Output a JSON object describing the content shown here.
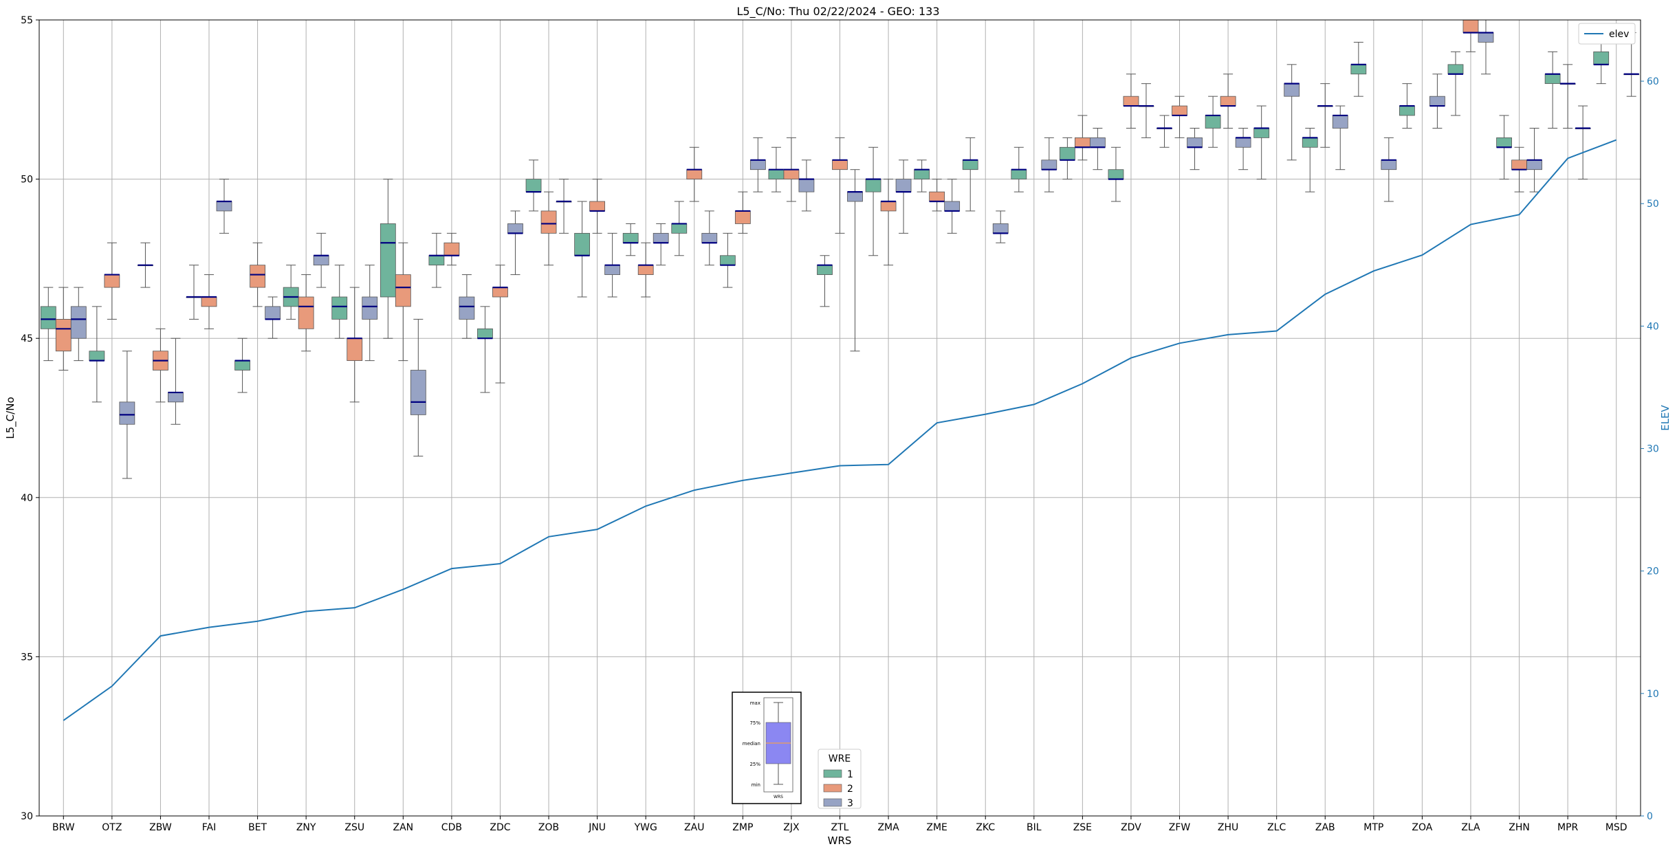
{
  "chart_data": {
    "type": "box",
    "title": "L5_C/No: Thu 02/22/2024 - GEO: 133",
    "xlabel": "WRS",
    "ylabel": "L5_C/No",
    "y2label": "ELEV",
    "ylim": [
      30,
      55
    ],
    "y2lim": [
      0,
      65
    ],
    "yticks": [
      30,
      35,
      40,
      45,
      50,
      55
    ],
    "y2ticks": [
      0,
      10,
      20,
      30,
      40,
      50,
      60
    ],
    "grid": true,
    "categories": [
      "BRW",
      "OTZ",
      "ZBW",
      "FAI",
      "BET",
      "ZNY",
      "ZSU",
      "ZAN",
      "CDB",
      "ZDC",
      "ZOB",
      "JNU",
      "YWG",
      "ZAU",
      "ZMP",
      "ZJX",
      "ZTL",
      "ZMA",
      "ZME",
      "ZKC",
      "BIL",
      "ZSE",
      "ZDV",
      "ZFW",
      "ZHU",
      "ZLC",
      "ZAB",
      "MTP",
      "ZOA",
      "ZLA",
      "ZHN",
      "MPR",
      "MSD"
    ],
    "box_series": [
      {
        "name": "1",
        "color": "#6fb49c",
        "boxes": [
          {
            "min": 44.3,
            "q1": 45.3,
            "median": 45.6,
            "q3": 46.0,
            "max": 46.6
          },
          {
            "min": 43.0,
            "q1": 44.3,
            "median": 44.3,
            "q3": 44.6,
            "max": 46.0
          },
          {
            "min": 46.6,
            "q1": 47.3,
            "median": 47.3,
            "q3": 47.3,
            "max": 48.0
          },
          {
            "min": 45.6,
            "q1": 46.3,
            "median": 46.3,
            "q3": 46.3,
            "max": 47.3
          },
          {
            "min": 43.3,
            "q1": 44.0,
            "median": 44.3,
            "q3": 44.3,
            "max": 45.0
          },
          {
            "min": 45.6,
            "q1": 46.0,
            "median": 46.3,
            "q3": 46.6,
            "max": 47.3
          },
          {
            "min": 45.0,
            "q1": 45.6,
            "median": 46.0,
            "q3": 46.3,
            "max": 47.3
          },
          {
            "min": 45.0,
            "q1": 46.3,
            "median": 48.0,
            "q3": 48.6,
            "max": 50.0
          },
          {
            "min": 46.6,
            "q1": 47.3,
            "median": 47.6,
            "q3": 47.6,
            "max": 48.3
          },
          {
            "min": 43.3,
            "q1": 45.0,
            "median": 45.0,
            "q3": 45.3,
            "max": 46.0
          },
          {
            "min": 49.0,
            "q1": 49.6,
            "median": 49.6,
            "q3": 50.0,
            "max": 50.6
          },
          {
            "min": 46.3,
            "q1": 47.6,
            "median": 47.6,
            "q3": 48.3,
            "max": 49.3
          },
          {
            "min": 47.6,
            "q1": 48.0,
            "median": 48.0,
            "q3": 48.3,
            "max": 48.6
          },
          {
            "min": 47.6,
            "q1": 48.3,
            "median": 48.6,
            "q3": 48.6,
            "max": 49.3
          },
          {
            "min": 46.6,
            "q1": 47.3,
            "median": 47.3,
            "q3": 47.6,
            "max": 48.3
          },
          {
            "min": 49.6,
            "q1": 50.0,
            "median": 50.3,
            "q3": 50.3,
            "max": 51.0
          },
          {
            "min": 46.0,
            "q1": 47.0,
            "median": 47.3,
            "q3": 47.3,
            "max": 47.6
          },
          {
            "min": 47.6,
            "q1": 49.6,
            "median": 50.0,
            "q3": 50.0,
            "max": 51.0
          },
          {
            "min": 49.6,
            "q1": 50.0,
            "median": 50.3,
            "q3": 50.3,
            "max": 50.6
          },
          {
            "min": 49.0,
            "q1": 50.3,
            "median": 50.6,
            "q3": 50.6,
            "max": 51.3
          },
          {
            "min": 49.6,
            "q1": 50.0,
            "median": 50.3,
            "q3": 50.3,
            "max": 51.0
          },
          {
            "min": 50.0,
            "q1": 50.6,
            "median": 50.6,
            "q3": 51.0,
            "max": 51.3
          },
          {
            "min": 49.3,
            "q1": 50.0,
            "median": 50.0,
            "q3": 50.3,
            "max": 51.0
          },
          {
            "min": 51.0,
            "q1": 51.6,
            "median": 51.6,
            "q3": 51.6,
            "max": 52.0
          },
          {
            "min": 51.0,
            "q1": 51.6,
            "median": 52.0,
            "q3": 52.0,
            "max": 52.6
          },
          {
            "min": 50.0,
            "q1": 51.3,
            "median": 51.6,
            "q3": 51.6,
            "max": 52.3
          },
          {
            "min": 49.6,
            "q1": 51.0,
            "median": 51.3,
            "q3": 51.3,
            "max": 51.6
          },
          {
            "min": 52.6,
            "q1": 53.3,
            "median": 53.6,
            "q3": 53.6,
            "max": 54.3
          },
          {
            "min": 51.6,
            "q1": 52.0,
            "median": 52.3,
            "q3": 52.3,
            "max": 53.0
          },
          {
            "min": 52.0,
            "q1": 53.3,
            "median": 53.3,
            "q3": 53.6,
            "max": 54.0
          },
          {
            "min": 50.0,
            "q1": 51.0,
            "median": 51.0,
            "q3": 51.3,
            "max": 52.0
          },
          {
            "min": 51.6,
            "q1": 53.0,
            "median": 53.3,
            "q3": 53.3,
            "max": 54.0
          },
          {
            "min": 53.0,
            "q1": 53.6,
            "median": 53.6,
            "q3": 54.0,
            "max": 54.3
          }
        ]
      },
      {
        "name": "2",
        "color": "#e89a7b",
        "boxes": [
          {
            "min": 44.0,
            "q1": 44.6,
            "median": 45.3,
            "q3": 45.6,
            "max": 46.6
          },
          {
            "min": 45.6,
            "q1": 46.6,
            "median": 47.0,
            "q3": 47.0,
            "max": 48.0
          },
          {
            "min": 43.0,
            "q1": 44.0,
            "median": 44.3,
            "q3": 44.6,
            "max": 45.3
          },
          {
            "min": 45.3,
            "q1": 46.0,
            "median": 46.3,
            "q3": 46.3,
            "max": 47.0
          },
          {
            "min": 46.0,
            "q1": 46.6,
            "median": 47.0,
            "q3": 47.3,
            "max": 48.0
          },
          {
            "min": 44.6,
            "q1": 45.3,
            "median": 46.0,
            "q3": 46.3,
            "max": 47.0
          },
          {
            "min": 43.0,
            "q1": 44.3,
            "median": 45.0,
            "q3": 45.0,
            "max": 46.6
          },
          {
            "min": 44.3,
            "q1": 46.0,
            "median": 46.6,
            "q3": 47.0,
            "max": 48.0
          },
          {
            "min": 47.3,
            "q1": 47.6,
            "median": 47.6,
            "q3": 48.0,
            "max": 48.3
          },
          {
            "min": 43.6,
            "q1": 46.3,
            "median": 46.6,
            "q3": 46.6,
            "max": 47.3
          },
          {
            "min": 47.3,
            "q1": 48.3,
            "median": 48.6,
            "q3": 49.0,
            "max": 49.6
          },
          {
            "min": 48.3,
            "q1": 49.0,
            "median": 49.0,
            "q3": 49.3,
            "max": 50.0
          },
          {
            "min": 46.3,
            "q1": 47.0,
            "median": 47.3,
            "q3": 47.3,
            "max": 48.0
          },
          {
            "min": 49.3,
            "q1": 50.0,
            "median": 50.3,
            "q3": 50.3,
            "max": 51.0
          },
          {
            "min": 48.3,
            "q1": 48.6,
            "median": 49.0,
            "q3": 49.0,
            "max": 49.6
          },
          {
            "min": 49.3,
            "q1": 50.0,
            "median": 50.3,
            "q3": 50.3,
            "max": 51.3
          },
          {
            "min": 48.3,
            "q1": 50.3,
            "median": 50.6,
            "q3": 50.6,
            "max": 51.3
          },
          {
            "min": 47.3,
            "q1": 49.0,
            "median": 49.3,
            "q3": 49.3,
            "max": 50.0
          },
          {
            "min": 49.0,
            "q1": 49.3,
            "median": 49.3,
            "q3": 49.6,
            "max": 50.0
          },
          {
            "min": null,
            "q1": null,
            "median": null,
            "q3": null,
            "max": null
          },
          {
            "min": null,
            "q1": null,
            "median": null,
            "q3": null,
            "max": null
          },
          {
            "min": 50.6,
            "q1": 51.0,
            "median": 51.0,
            "q3": 51.3,
            "max": 52.0
          },
          {
            "min": 51.6,
            "q1": 52.3,
            "median": 52.3,
            "q3": 52.6,
            "max": 53.3
          },
          {
            "min": 51.3,
            "q1": 52.0,
            "median": 52.0,
            "q3": 52.3,
            "max": 52.6
          },
          {
            "min": 51.6,
            "q1": 52.3,
            "median": 52.3,
            "q3": 52.6,
            "max": 53.3
          },
          {
            "min": null,
            "q1": null,
            "median": null,
            "q3": null,
            "max": null
          },
          {
            "min": 51.0,
            "q1": 52.3,
            "median": 52.3,
            "q3": 52.3,
            "max": 53.0
          },
          {
            "min": null,
            "q1": null,
            "median": null,
            "q3": null,
            "max": null
          },
          {
            "min": null,
            "q1": null,
            "median": null,
            "q3": null,
            "max": null
          },
          {
            "min": 54.0,
            "q1": 54.6,
            "median": 54.6,
            "q3": 55.0,
            "max": 55.0
          },
          {
            "min": 49.6,
            "q1": 50.3,
            "median": 50.3,
            "q3": 50.6,
            "max": 51.0
          },
          {
            "min": 51.6,
            "q1": 53.0,
            "median": 53.0,
            "q3": 53.0,
            "max": 53.6
          },
          {
            "min": null,
            "q1": null,
            "median": null,
            "q3": null,
            "max": null
          }
        ]
      },
      {
        "name": "3",
        "color": "#97a3c4",
        "boxes": [
          {
            "min": 44.3,
            "q1": 45.0,
            "median": 45.6,
            "q3": 46.0,
            "max": 46.6
          },
          {
            "min": 40.6,
            "q1": 42.3,
            "median": 42.6,
            "q3": 43.0,
            "max": 44.6
          },
          {
            "min": 42.3,
            "q1": 43.0,
            "median": 43.3,
            "q3": 43.3,
            "max": 45.0
          },
          {
            "min": 48.3,
            "q1": 49.0,
            "median": 49.3,
            "q3": 49.3,
            "max": 50.0
          },
          {
            "min": 45.0,
            "q1": 45.6,
            "median": 45.6,
            "q3": 46.0,
            "max": 46.3
          },
          {
            "min": 46.6,
            "q1": 47.3,
            "median": 47.6,
            "q3": 47.6,
            "max": 48.3
          },
          {
            "min": 44.3,
            "q1": 45.6,
            "median": 46.0,
            "q3": 46.3,
            "max": 47.3
          },
          {
            "min": 41.3,
            "q1": 42.6,
            "median": 43.0,
            "q3": 44.0,
            "max": 45.6
          },
          {
            "min": 45.0,
            "q1": 45.6,
            "median": 46.0,
            "q3": 46.3,
            "max": 47.0
          },
          {
            "min": 47.0,
            "q1": 48.3,
            "median": 48.3,
            "q3": 48.6,
            "max": 49.0
          },
          {
            "min": 48.3,
            "q1": 49.3,
            "median": 49.3,
            "q3": 49.3,
            "max": 50.0
          },
          {
            "min": 46.3,
            "q1": 47.0,
            "median": 47.3,
            "q3": 47.3,
            "max": 48.3
          },
          {
            "min": 47.3,
            "q1": 48.0,
            "median": 48.0,
            "q3": 48.3,
            "max": 48.6
          },
          {
            "min": 47.3,
            "q1": 48.0,
            "median": 48.0,
            "q3": 48.3,
            "max": 49.0
          },
          {
            "min": 49.6,
            "q1": 50.3,
            "median": 50.6,
            "q3": 50.6,
            "max": 51.3
          },
          {
            "min": 49.0,
            "q1": 49.6,
            "median": 50.0,
            "q3": 50.0,
            "max": 50.6
          },
          {
            "min": 44.6,
            "q1": 49.3,
            "median": 49.6,
            "q3": 49.6,
            "max": 50.3
          },
          {
            "min": 48.3,
            "q1": 49.6,
            "median": 49.6,
            "q3": 50.0,
            "max": 50.6
          },
          {
            "min": 48.3,
            "q1": 49.0,
            "median": 49.0,
            "q3": 49.3,
            "max": 50.0
          },
          {
            "min": 48.0,
            "q1": 48.3,
            "median": 48.3,
            "q3": 48.6,
            "max": 49.0
          },
          {
            "min": 49.6,
            "q1": 50.3,
            "median": 50.3,
            "q3": 50.6,
            "max": 51.3
          },
          {
            "min": 50.3,
            "q1": 51.0,
            "median": 51.0,
            "q3": 51.3,
            "max": 51.6
          },
          {
            "min": 51.3,
            "q1": 52.3,
            "median": 52.3,
            "q3": 52.3,
            "max": 53.0
          },
          {
            "min": 50.3,
            "q1": 51.0,
            "median": 51.0,
            "q3": 51.3,
            "max": 51.6
          },
          {
            "min": 50.3,
            "q1": 51.0,
            "median": 51.3,
            "q3": 51.3,
            "max": 51.6
          },
          {
            "min": 50.6,
            "q1": 52.6,
            "median": 53.0,
            "q3": 53.0,
            "max": 53.6
          },
          {
            "min": 50.3,
            "q1": 51.6,
            "median": 52.0,
            "q3": 52.0,
            "max": 52.3
          },
          {
            "min": 49.3,
            "q1": 50.3,
            "median": 50.6,
            "q3": 50.6,
            "max": 51.3
          },
          {
            "min": 51.6,
            "q1": 52.3,
            "median": 52.3,
            "q3": 52.6,
            "max": 53.3
          },
          {
            "min": 53.3,
            "q1": 54.3,
            "median": 54.6,
            "q3": 54.6,
            "max": 55.0
          },
          {
            "min": 49.6,
            "q1": 50.3,
            "median": 50.6,
            "q3": 50.6,
            "max": 51.6
          },
          {
            "min": 50.0,
            "q1": 51.6,
            "median": 51.6,
            "q3": 51.6,
            "max": 52.3
          },
          {
            "min": 52.6,
            "q1": 53.3,
            "median": 53.3,
            "q3": 53.3,
            "max": 54.6
          }
        ]
      }
    ],
    "line_series": {
      "name": "elev",
      "color": "#1f77b4",
      "axis": "right",
      "values": [
        7.8,
        10.6,
        14.7,
        15.4,
        15.9,
        16.7,
        17.0,
        18.5,
        20.2,
        20.6,
        22.8,
        23.4,
        25.3,
        26.6,
        27.4,
        28.0,
        28.6,
        28.7,
        32.1,
        32.8,
        33.6,
        35.3,
        37.4,
        38.6,
        39.3,
        39.6,
        42.6,
        44.5,
        45.8,
        48.3,
        49.1,
        53.7,
        55.2
      ]
    },
    "legend": {
      "title": "WRE",
      "entries": [
        "1",
        "2",
        "3"
      ],
      "placement": "bottom-center"
    },
    "line_legend": {
      "entries": [
        "elev"
      ],
      "placement": "top-right"
    },
    "inset": {
      "labels": [
        "max",
        "75%",
        "median",
        "25%",
        "min"
      ],
      "xlabel": "WRS",
      "box_color": "#8b87f2",
      "median_color": "#e09b6e"
    }
  },
  "colors": {
    "median": "#000080",
    "whisker": "#555555",
    "grid": "#b0b0b0",
    "right_axis": "#1f77b4"
  }
}
